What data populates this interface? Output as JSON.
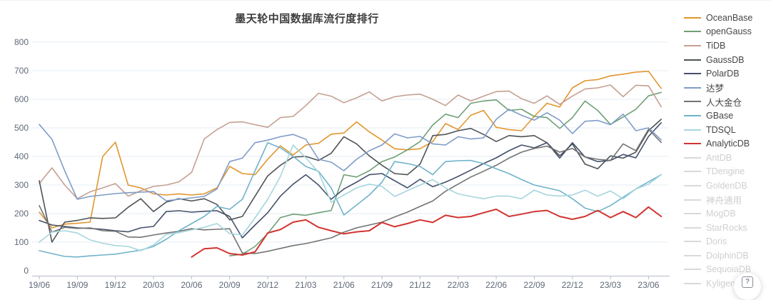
{
  "page": {
    "title": "墨天轮中国数据库流行度排行"
  },
  "help_button": {
    "icon": "?"
  },
  "colors": {
    "axis_text": "#5e6878",
    "grid_line": "#e4ecf6",
    "axis_line": "#b4bac4",
    "inactive_legend": "#d9d9d9"
  },
  "chart_data": {
    "type": "line",
    "title": "墨天轮中国数据库流行度排行",
    "xlabel": "",
    "ylabel": "",
    "ylim": [
      0,
      800
    ],
    "y_ticks": [
      0,
      100,
      200,
      300,
      400,
      500,
      600,
      700,
      800
    ],
    "grid": true,
    "legend_position": "right",
    "x_tick_every": 3,
    "x": [
      "19/06",
      "19/07",
      "19/08",
      "19/09",
      "19/10",
      "19/11",
      "19/12",
      "20/01",
      "20/02",
      "20/03",
      "20/04",
      "20/05",
      "20/06",
      "20/07",
      "20/08",
      "20/09",
      "20/10",
      "20/11",
      "20/12",
      "21/01",
      "21/02",
      "21/03",
      "21/04",
      "21/05",
      "21/06",
      "21/07",
      "21/08",
      "21/09",
      "21/10",
      "21/11",
      "21/12",
      "22/01",
      "22/02",
      "22/03",
      "22/04",
      "22/05",
      "22/06",
      "22/07",
      "22/08",
      "22/09",
      "22/10",
      "22/11",
      "22/12",
      "23/01",
      "23/02",
      "23/03",
      "23/04",
      "23/05",
      "23/06",
      "23/07"
    ],
    "series": [
      {
        "name": "OceanBase",
        "color": "#e2962f",
        "active": true,
        "values": [
          205,
          150,
          163,
          166,
          170,
          400,
          450,
          300,
          290,
          269,
          265,
          269,
          265,
          269,
          290,
          365,
          340,
          336,
          390,
          437,
          405,
          440,
          446,
          478,
          482,
          521,
          486,
          457,
          427,
          423,
          427,
          452,
          515,
          494,
          544,
          561,
          502,
          494,
          490,
          540,
          586,
          573,
          640,
          665,
          669,
          682,
          688,
          695,
          698,
          638
        ]
      },
      {
        "name": "openGauss",
        "color": "#6fa075",
        "active": true,
        "values": [
          null,
          null,
          null,
          null,
          null,
          null,
          null,
          null,
          null,
          null,
          null,
          null,
          null,
          null,
          null,
          52,
          58,
          85,
          130,
          186,
          198,
          194,
          203,
          211,
          336,
          328,
          350,
          382,
          398,
          423,
          452,
          510,
          548,
          536,
          586,
          594,
          598,
          561,
          565,
          540,
          536,
          498,
          536,
          594,
          561,
          512,
          538,
          565,
          612,
          624
        ]
      },
      {
        "name": "TiDB",
        "color": "#c5a092",
        "active": true,
        "values": [
          305,
          360,
          300,
          252,
          276,
          290,
          305,
          261,
          280,
          295,
          300,
          311,
          344,
          461,
          494,
          519,
          521,
          511,
          502,
          536,
          540,
          578,
          621,
          611,
          588,
          605,
          626,
          594,
          609,
          615,
          618,
          600,
          578,
          615,
          594,
          611,
          627,
          629,
          602,
          586,
          612,
          582,
          611,
          636,
          640,
          650,
          609,
          649,
          647,
          574
        ]
      },
      {
        "name": "GaussDB",
        "color": "#4f5356",
        "active": true,
        "values": [
          315,
          100,
          170,
          176,
          185,
          183,
          185,
          222,
          252,
          207,
          240,
          252,
          244,
          252,
          232,
          178,
          190,
          261,
          332,
          369,
          398,
          400,
          386,
          411,
          469,
          444,
          402,
          369,
          340,
          336,
          373,
          473,
          477,
          490,
          498,
          477,
          452,
          473,
          469,
          473,
          448,
          402,
          444,
          373,
          357,
          402,
          394,
          415,
          490,
          530
        ]
      },
      {
        "name": "PolarDB",
        "color": "#45506b",
        "active": true,
        "values": [
          176,
          160,
          155,
          150,
          148,
          145,
          140,
          136,
          150,
          155,
          207,
          210,
          205,
          208,
          210,
          190,
          115,
          160,
          203,
          261,
          303,
          336,
          300,
          250,
          286,
          310,
          336,
          340,
          315,
          290,
          320,
          294,
          310,
          330,
          352,
          375,
          395,
          420,
          440,
          430,
          448,
          394,
          448,
          398,
          382,
          386,
          407,
          395,
          470,
          518
        ]
      },
      {
        "name": "达梦",
        "color": "#7f9cc9",
        "active": true,
        "values": [
          512,
          460,
          350,
          250,
          260,
          265,
          270,
          273,
          275,
          277,
          245,
          250,
          255,
          260,
          286,
          382,
          394,
          448,
          457,
          469,
          477,
          460,
          390,
          380,
          350,
          390,
          420,
          440,
          479,
          465,
          470,
          444,
          440,
          469,
          461,
          465,
          530,
          565,
          544,
          527,
          553,
          527,
          480,
          523,
          526,
          511,
          548,
          490,
          500,
          458
        ]
      },
      {
        "name": "人大金仓",
        "color": "#737373",
        "active": true,
        "values": [
          228,
          135,
          152,
          148,
          150,
          140,
          138,
          118,
          117,
          125,
          132,
          138,
          147,
          143,
          145,
          147,
          62,
          60,
          68,
          78,
          88,
          95,
          105,
          115,
          135,
          150,
          160,
          170,
          188,
          205,
          225,
          244,
          278,
          303,
          328,
          348,
          369,
          394,
          415,
          428,
          436,
          415,
          428,
          398,
          390,
          386,
          444,
          420,
          495,
          449
        ]
      },
      {
        "name": "GBase",
        "color": "#70b3ca",
        "active": true,
        "values": [
          70,
          60,
          50,
          48,
          52,
          55,
          58,
          65,
          72,
          85,
          110,
          140,
          165,
          190,
          225,
          215,
          250,
          350,
          448,
          430,
          400,
          365,
          348,
          290,
          195,
          230,
          265,
          310,
          382,
          375,
          365,
          336,
          382,
          385,
          386,
          375,
          357,
          340,
          319,
          300,
          290,
          280,
          252,
          219,
          207,
          228,
          257,
          286,
          311,
          336
        ]
      },
      {
        "name": "TDSQL",
        "color": "#a6d6dd",
        "active": true,
        "values": [
          100,
          135,
          140,
          132,
          108,
          96,
          88,
          85,
          70,
          90,
          127,
          133,
          143,
          152,
          165,
          130,
          125,
          185,
          250,
          330,
          440,
          395,
          345,
          240,
          265,
          290,
          303,
          295,
          260,
          280,
          300,
          319,
          290,
          269,
          260,
          252,
          261,
          261,
          252,
          282,
          265,
          261,
          265,
          282,
          261,
          279,
          252,
          286,
          303,
          336
        ]
      },
      {
        "name": "AnalyticDB",
        "color": "#d23430",
        "active": true,
        "width": 2,
        "values": [
          null,
          null,
          null,
          null,
          null,
          null,
          null,
          null,
          null,
          null,
          null,
          null,
          48,
          77,
          80,
          60,
          55,
          66,
          132,
          144,
          170,
          178,
          152,
          140,
          129,
          136,
          140,
          169,
          154,
          165,
          178,
          169,
          194,
          186,
          190,
          203,
          215,
          190,
          198,
          207,
          211,
          190,
          180,
          190,
          211,
          186,
          207,
          186,
          223,
          190
        ]
      },
      {
        "name": "AntDB",
        "color": "#d9d9d9",
        "active": false,
        "values": []
      },
      {
        "name": "TDengine",
        "color": "#d9d9d9",
        "active": false,
        "values": []
      },
      {
        "name": "GoldenDB",
        "color": "#d9d9d9",
        "active": false,
        "values": []
      },
      {
        "name": "神舟通用",
        "color": "#d9d9d9",
        "active": false,
        "values": []
      },
      {
        "name": "MogDB",
        "color": "#d9d9d9",
        "active": false,
        "values": []
      },
      {
        "name": "StarRocks",
        "color": "#d9d9d9",
        "active": false,
        "values": []
      },
      {
        "name": "Doris",
        "color": "#d9d9d9",
        "active": false,
        "values": []
      },
      {
        "name": "DolphinDB",
        "color": "#d9d9d9",
        "active": false,
        "values": []
      },
      {
        "name": "SequoiaDB",
        "color": "#d9d9d9",
        "active": false,
        "values": []
      },
      {
        "name": "Kyligence",
        "color": "#d9d9d9",
        "active": false,
        "values": []
      }
    ]
  }
}
